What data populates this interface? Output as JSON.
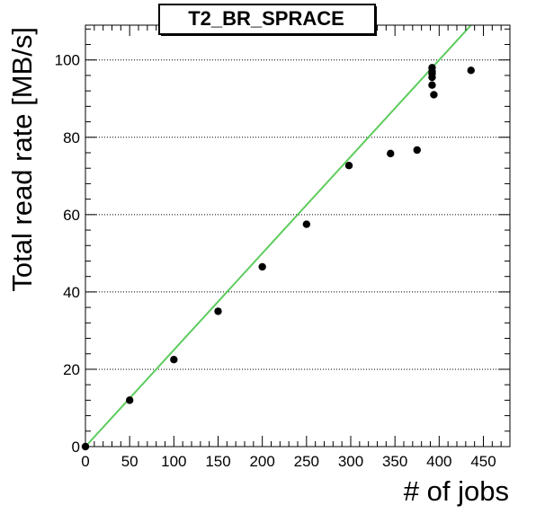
{
  "chart_data": {
    "type": "scatter",
    "title": "T2_BR_SPRACE",
    "xlabel": "# of jobs",
    "ylabel": "Total read rate [MB/s]",
    "xlim": [
      0,
      480
    ],
    "ylim": [
      0,
      109
    ],
    "x_ticks": [
      0,
      50,
      100,
      150,
      200,
      250,
      300,
      350,
      400,
      450
    ],
    "y_ticks": [
      0,
      20,
      40,
      60,
      80,
      100
    ],
    "grid": "horizontal-dotted",
    "points": [
      {
        "x": 0,
        "y": 0
      },
      {
        "x": 50,
        "y": 12
      },
      {
        "x": 100,
        "y": 22.5
      },
      {
        "x": 150,
        "y": 35
      },
      {
        "x": 200,
        "y": 46.5
      },
      {
        "x": 250,
        "y": 57.5
      },
      {
        "x": 298,
        "y": 72.7
      },
      {
        "x": 345,
        "y": 75.8
      },
      {
        "x": 375,
        "y": 76.7
      },
      {
        "x": 392,
        "y": 98
      },
      {
        "x": 392,
        "y": 97
      },
      {
        "x": 392,
        "y": 96.5
      },
      {
        "x": 392,
        "y": 95.5
      },
      {
        "x": 392,
        "y": 93.5
      },
      {
        "x": 394,
        "y": 91
      },
      {
        "x": 436,
        "y": 97.3
      }
    ],
    "fit_line": {
      "type": "linear",
      "x": [
        0,
        436
      ],
      "y": [
        0,
        109
      ]
    },
    "colors": {
      "points": "#000000",
      "fit_line": "#5dcc5d",
      "grid": "#000000",
      "frame": "#000000"
    }
  }
}
